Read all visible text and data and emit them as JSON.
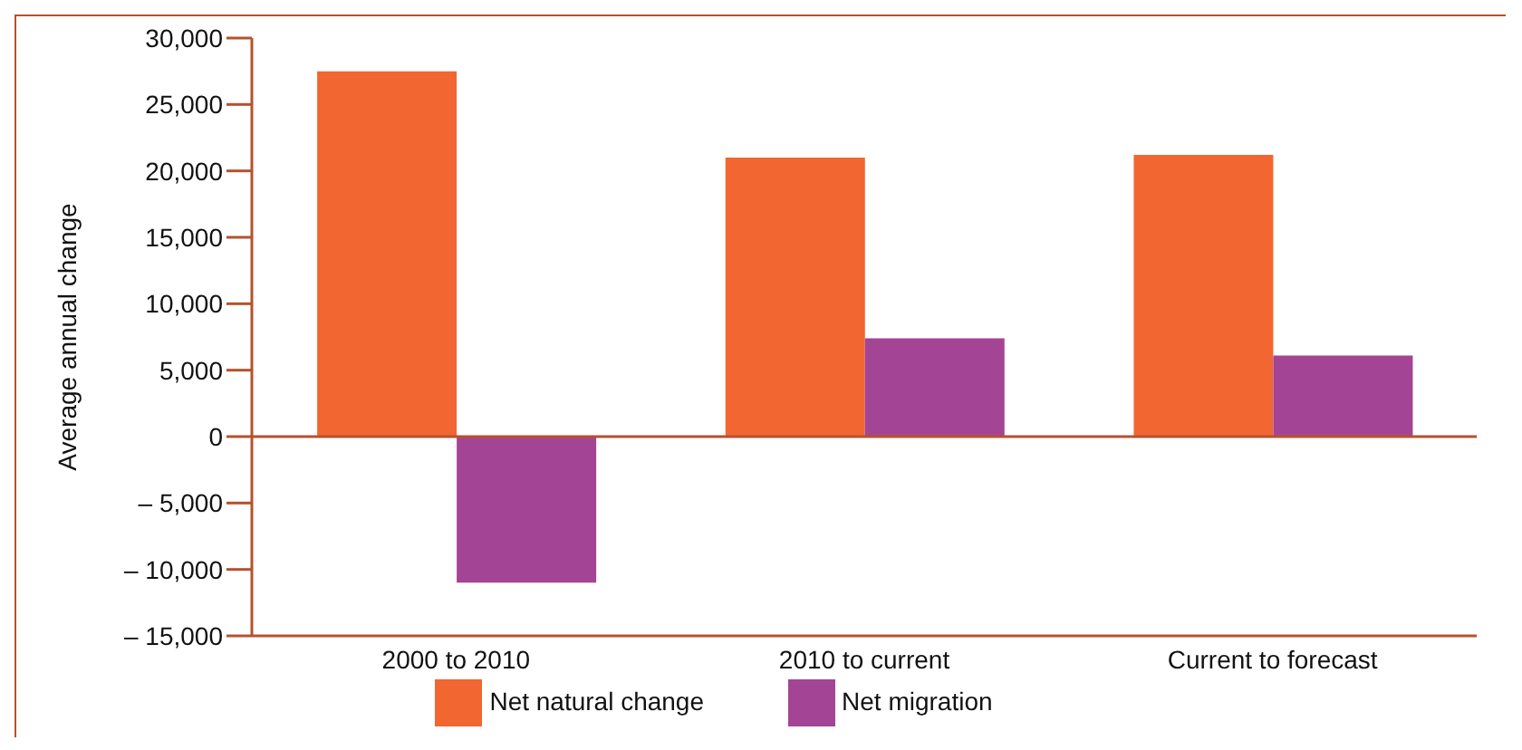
{
  "chart_data": {
    "type": "bar",
    "ylabel": "Average annual change",
    "categories": [
      "2000 to 2010",
      "2010 to current",
      "Current to forecast"
    ],
    "series": [
      {
        "name": "Net natural change",
        "color": "#f26631",
        "values": [
          27500,
          21000,
          21200
        ]
      },
      {
        "name": "Net migration",
        "color": "#a44495",
        "values": [
          -11000,
          7400,
          6100
        ]
      }
    ],
    "ylim": [
      -15000,
      30000
    ],
    "yticks": [
      {
        "value": -15000,
        "label": "– 15,000"
      },
      {
        "value": -10000,
        "label": "– 10,000"
      },
      {
        "value": -5000,
        "label": "– 5,000"
      },
      0,
      {
        "value": 5000,
        "label": "5,000"
      },
      {
        "value": 10000,
        "label": "10,000"
      },
      {
        "value": 15000,
        "label": "15,000"
      },
      {
        "value": 20000,
        "label": "20,000"
      },
      {
        "value": 25000,
        "label": "25,000"
      },
      {
        "value": 30000,
        "label": "30,000"
      }
    ],
    "ref_lines": [
      {
        "axis": "y",
        "value": 0,
        "color": "#b5522e"
      }
    ],
    "grid": false,
    "legend": "bottom"
  }
}
